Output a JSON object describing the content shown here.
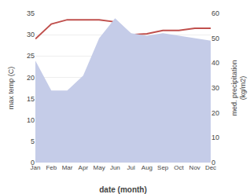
{
  "chart_data": {
    "type": "line",
    "xlabel": "date (month)",
    "ylabel": "max temp (C)",
    "y2label": "med. precipitation\n(kg/m2)",
    "categories": [
      "Jan",
      "Feb",
      "Mar",
      "Apr",
      "May",
      "Jun",
      "Jul",
      "Aug",
      "Sep",
      "Oct",
      "Nov",
      "Dec"
    ],
    "series": [
      {
        "type": "area",
        "axis": "y2",
        "color": "#c5cce8",
        "values": [
          41,
          29,
          29,
          35,
          50,
          58,
          52,
          51,
          52,
          51,
          50,
          49
        ]
      },
      {
        "type": "line",
        "color": "#c0504d",
        "values": [
          29.0,
          32.5,
          33.5,
          33.5,
          33.5,
          33.0,
          30.0,
          30.2,
          31.0,
          31.0,
          31.5,
          31.5
        ]
      }
    ],
    "ylim": [
      0,
      35
    ],
    "yticks": [
      0,
      5,
      10,
      15,
      20,
      25,
      30,
      35
    ],
    "y2lim": [
      0,
      60
    ],
    "y2ticks": [
      0,
      10,
      20,
      30,
      40,
      50,
      60
    ],
    "grid": true
  }
}
